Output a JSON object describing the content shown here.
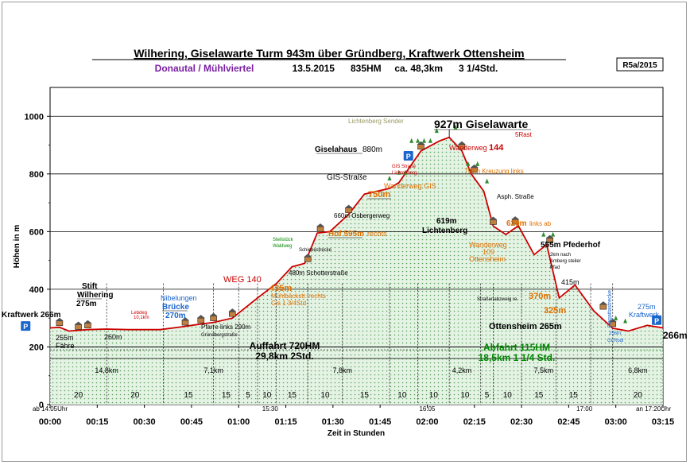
{
  "header": {
    "title": "Wilhering, Giselawarte Turm 943m über Gründberg, Kraftwerk Ottensheim",
    "subtitle_region": "Donautal / Mühlviertel",
    "subtitle_info": "13.5.2015      835HM     ca. 48,3km      3 1/4Std.",
    "badge": "R5a/2015"
  },
  "colors": {
    "profile_line": "#cc0000",
    "fill": "#dff0df",
    "fill_dots": "#5a9e5a",
    "grid": "#000000",
    "ascent_text": "#000000",
    "descent_text": "#008800",
    "orange_text": "#e07000",
    "blue_text": "#1a66cc",
    "red_text": "#cc0000",
    "purple_text": "#7a1fa2",
    "gray_text": "#666666"
  },
  "chart_data": {
    "type": "area",
    "xlabel": "Zeit in Stunden",
    "ylabel": "Höhen in m",
    "ylim": [
      0,
      1100
    ],
    "xlim_minutes": [
      0,
      195
    ],
    "y_ticks": [
      "0",
      "200",
      "400",
      "600",
      "800",
      "1000"
    ],
    "x_ticks": [
      "00:00",
      "00:15",
      "00:30",
      "00:45",
      "01:00",
      "01:15",
      "01:30",
      "01:45",
      "02:00",
      "02:15",
      "02:30",
      "02:45",
      "03:00",
      "03:15"
    ],
    "grid": true,
    "profile": [
      {
        "t": 0,
        "h": 266
      },
      {
        "t": 3,
        "h": 268
      },
      {
        "t": 6,
        "h": 255
      },
      {
        "t": 12,
        "h": 260
      },
      {
        "t": 18,
        "h": 262
      },
      {
        "t": 25,
        "h": 260
      },
      {
        "t": 35,
        "h": 260
      },
      {
        "t": 42,
        "h": 270
      },
      {
        "t": 47,
        "h": 278
      },
      {
        "t": 52,
        "h": 285
      },
      {
        "t": 58,
        "h": 300
      },
      {
        "t": 66,
        "h": 370
      },
      {
        "t": 72,
        "h": 420
      },
      {
        "t": 77,
        "h": 478
      },
      {
        "t": 81,
        "h": 490
      },
      {
        "t": 85,
        "h": 595
      },
      {
        "t": 89,
        "h": 600
      },
      {
        "t": 95,
        "h": 660
      },
      {
        "t": 100,
        "h": 730
      },
      {
        "t": 108,
        "h": 750
      },
      {
        "t": 111,
        "h": 770
      },
      {
        "t": 118,
        "h": 880
      },
      {
        "t": 124,
        "h": 915
      },
      {
        "t": 127,
        "h": 927
      },
      {
        "t": 131,
        "h": 880
      },
      {
        "t": 134,
        "h": 800
      },
      {
        "t": 138,
        "h": 740
      },
      {
        "t": 141,
        "h": 619
      },
      {
        "t": 145,
        "h": 590
      },
      {
        "t": 149,
        "h": 620
      },
      {
        "t": 154,
        "h": 520
      },
      {
        "t": 158,
        "h": 555
      },
      {
        "t": 162,
        "h": 370
      },
      {
        "t": 167,
        "h": 415
      },
      {
        "t": 173,
        "h": 325
      },
      {
        "t": 179,
        "h": 265
      },
      {
        "t": 184,
        "h": 255
      },
      {
        "t": 190,
        "h": 275
      },
      {
        "t": 195,
        "h": 266
      }
    ],
    "vlines_minutes": [
      0,
      18,
      36,
      52,
      60,
      66,
      72,
      82,
      93,
      108,
      117,
      127,
      137,
      141,
      150,
      161,
      172,
      179,
      195
    ],
    "section_speeds": [
      {
        "t": 9,
        "label": "20"
      },
      {
        "t": 27,
        "label": "20"
      },
      {
        "t": 44,
        "label": "15"
      },
      {
        "t": 56,
        "label": "15"
      },
      {
        "t": 63,
        "label": "5"
      },
      {
        "t": 69,
        "label": "10"
      },
      {
        "t": 77,
        "label": "15"
      },
      {
        "t": 87.5,
        "label": "10"
      },
      {
        "t": 100,
        "label": "15"
      },
      {
        "t": 112,
        "label": "10"
      },
      {
        "t": 122,
        "label": "10"
      },
      {
        "t": 132,
        "label": "10"
      },
      {
        "t": 139,
        "label": "5"
      },
      {
        "t": 145.5,
        "label": "10"
      },
      {
        "t": 155.5,
        "label": "15"
      },
      {
        "t": 166.5,
        "label": "15"
      },
      {
        "t": 187,
        "label": "20"
      }
    ],
    "distances": [
      {
        "t": 18,
        "label": "14,8km"
      },
      {
        "t": 52,
        "label": "7,1km"
      },
      {
        "t": 93,
        "label": "7,8km"
      },
      {
        "t": 131,
        "label": "4,2km"
      },
      {
        "t": 157,
        "label": "7,5km"
      },
      {
        "t": 187,
        "label": "6,8km"
      }
    ],
    "clock_labels": [
      {
        "t": 0,
        "label": "ab 14:05Uhr"
      },
      {
        "t": 70,
        "label": "15:30"
      },
      {
        "t": 120,
        "label": "16:05"
      },
      {
        "t": 170,
        "label": "17:00"
      },
      {
        "t": 192,
        "label": "an 17:20Uhr"
      }
    ],
    "summary": {
      "ascent": "Auffahrt  720HM",
      "ascent_detail": "29,8km  2Std.",
      "descent": "Abfahrt  115HM",
      "descent_detail": "18,5km  1 1/4 Std."
    },
    "end_label": "266m",
    "annotations": [
      {
        "t": 0,
        "h": 266,
        "label": "Kraftwerk 266m",
        "color": "#000000",
        "size": 10,
        "bold": true
      },
      {
        "t": 6,
        "h": 255,
        "label": "255m",
        "color": "#000000",
        "size": 9,
        "bold": false
      },
      {
        "t": 6,
        "h": 255,
        "label": "Fähre",
        "color": "#000000",
        "size": 9,
        "bold": false
      },
      {
        "t": 6,
        "h": 290,
        "label": "Stift",
        "color": "#000000",
        "size": 10,
        "bold": true
      },
      {
        "t": 6,
        "h": 290,
        "label": "Wilhering",
        "color": "#000000",
        "size": 10,
        "bold": true
      },
      {
        "t": 6,
        "h": 290,
        "label": "275m",
        "color": "#000000",
        "size": 10,
        "bold": true
      },
      {
        "t": 18,
        "h": 260,
        "label": "260m",
        "color": "#000000",
        "size": 9,
        "bold": false
      },
      {
        "t": 25,
        "h": 300,
        "label": "Lebdeg",
        "color": "#cc0000",
        "size": 6,
        "bold": false
      },
      {
        "t": 25,
        "h": 300,
        "label": "10,1km",
        "color": "#cc0000",
        "size": 6,
        "bold": false
      },
      {
        "t": 41,
        "h": 300,
        "label": "Nibelungen",
        "color": "#1a66cc",
        "size": 9,
        "bold": false
      },
      {
        "t": 41,
        "h": 300,
        "label": "Brücke",
        "color": "#1a66cc",
        "size": 10,
        "bold": true
      },
      {
        "t": 41,
        "h": 300,
        "label": "270m",
        "color": "#1a66cc",
        "size": 10,
        "bold": true
      },
      {
        "t": 49,
        "h": 270,
        "label": "Pfarre links 290m",
        "color": "#000000",
        "size": 8,
        "bold": false
      },
      {
        "t": 49,
        "h": 270,
        "label": "Gründbergstraße",
        "color": "#000000",
        "size": 6,
        "bold": false
      },
      {
        "t": 62,
        "h": 430,
        "label": "WEG 140",
        "color": "#cc0000",
        "size": 11,
        "bold": false
      },
      {
        "t": 66,
        "h": 370,
        "label": "435m",
        "color": "#e07000",
        "size": 11,
        "bold": true
      },
      {
        "t": 66,
        "h": 370,
        "label": "Mühlbäckstr. rechts",
        "color": "#e07000",
        "size": 8,
        "bold": false
      },
      {
        "t": 66,
        "h": 370,
        "label": "Gis 1 3/4Std",
        "color": "#e07000",
        "size": 8,
        "bold": false
      },
      {
        "t": 74,
        "h": 480,
        "label": "480m Schotterstraße",
        "color": "#000000",
        "size": 8,
        "bold": false
      },
      {
        "t": 73,
        "h": 530,
        "label": "Steilstück",
        "color": "#008800",
        "size": 6,
        "bold": false
      },
      {
        "t": 73,
        "h": 530,
        "label": "Waldweg",
        "color": "#008800",
        "size": 6,
        "bold": false
      },
      {
        "t": 78,
        "h": 540,
        "label": "Schiebestrecke",
        "color": "#000000",
        "size": 6,
        "bold": false
      },
      {
        "t": 86,
        "h": 600,
        "label": "Hof 595m",
        "color": "#e07000",
        "size": 10,
        "bold": true
      },
      {
        "t": 86,
        "h": 600,
        "label": "rechts",
        "color": "#e07000",
        "size": 9,
        "bold": false
      },
      {
        "t": 94,
        "h": 660,
        "label": "660m Osbergerweg",
        "color": "#000000",
        "size": 8,
        "bold": false
      },
      {
        "t": 101,
        "h": 730,
        "label": "750m",
        "color": "#e07000",
        "size": 11,
        "bold": true
      },
      {
        "t": 108,
        "h": 750,
        "label": "Wanderweg GIS",
        "color": "#e07000",
        "size": 9,
        "bold": false
      },
      {
        "t": 100,
        "h": 780,
        "label": "GIS-Straße",
        "color": "#000000",
        "size": 10,
        "bold": false
      },
      {
        "t": 115,
        "h": 820,
        "label": "GIS Straße",
        "color": "#cc0000",
        "size": 6,
        "bold": false
      },
      {
        "t": 115,
        "h": 820,
        "label": "Lichtenberg",
        "color": "#cc0000",
        "size": 6,
        "bold": false
      },
      {
        "t": 104,
        "h": 880,
        "label": "Giselahaus",
        "color": "#000000",
        "size": 10,
        "bold": true
      },
      {
        "t": 104,
        "h": 880,
        "label": "880m",
        "color": "#000000",
        "size": 10,
        "bold": false
      },
      {
        "t": 112,
        "h": 950,
        "label": "Lichtenberg Sender",
        "color": "#999966",
        "size": 8,
        "bold": false
      },
      {
        "t": 128,
        "h": 960,
        "label": "927m Giselawarte",
        "color": "#000000",
        "size": 14,
        "bold": true
      },
      {
        "t": 147,
        "h": 940,
        "label": "5Rast",
        "color": "#cc0000",
        "size": 8,
        "bold": false
      },
      {
        "t": 132,
        "h": 880,
        "label": "Wanderweg",
        "color": "#cc0000",
        "size": 9,
        "bold": false
      },
      {
        "t": 132,
        "h": 880,
        "label": "144",
        "color": "#cc0000",
        "size": 11,
        "bold": true
      },
      {
        "t": 137,
        "h": 800,
        "label": "795m Kreuzung links",
        "color": "#e07000",
        "size": 8,
        "bold": false
      },
      {
        "t": 142,
        "h": 720,
        "label": "Asph. Straße",
        "color": "#000000",
        "size": 8,
        "bold": false
      },
      {
        "t": 135,
        "h": 640,
        "label": "619m",
        "color": "#000000",
        "size": 10,
        "bold": true
      },
      {
        "t": 135,
        "h": 640,
        "label": "Lichtenberg",
        "color": "#000000",
        "size": 10,
        "bold": true
      },
      {
        "t": 148,
        "h": 620,
        "label": "620m",
        "color": "#e07000",
        "size": 10,
        "bold": true
      },
      {
        "t": 148,
        "h": 620,
        "label": "links ab",
        "color": "#e07000",
        "size": 8,
        "bold": false
      },
      {
        "t": 143,
        "h": 560,
        "label": "Wanderweg",
        "color": "#e07000",
        "size": 9,
        "bold": false
      },
      {
        "t": 143,
        "h": 560,
        "label": "109",
        "color": "#e07000",
        "size": 9,
        "bold": false
      },
      {
        "t": 143,
        "h": 560,
        "label": "Ottensheim",
        "color": "#e07000",
        "size": 9,
        "bold": false
      },
      {
        "t": 159,
        "h": 555,
        "label": "555m Pfederhof",
        "color": "#000000",
        "size": 10,
        "bold": true
      },
      {
        "t": 161,
        "h": 520,
        "label": "2km nach",
        "color": "#000000",
        "size": 6,
        "bold": false
      },
      {
        "t": 161,
        "h": 520,
        "label": "Amberg steiler",
        "color": "#000000",
        "size": 6,
        "bold": false
      },
      {
        "t": 161,
        "h": 520,
        "label": "Pfad",
        "color": "#000000",
        "size": 6,
        "bold": false
      },
      {
        "t": 166,
        "h": 415,
        "label": "415m",
        "color": "#000000",
        "size": 9,
        "bold": false
      },
      {
        "t": 147,
        "h": 370,
        "label": "Straßenabzweig re.",
        "color": "#000000",
        "size": 6,
        "bold": false
      },
      {
        "t": 160,
        "h": 370,
        "label": "370m",
        "color": "#e07000",
        "size": 11,
        "bold": true
      },
      {
        "t": 172,
        "h": 325,
        "label": "325m",
        "color": "#e07000",
        "size": 11,
        "bold": true
      },
      {
        "t": 174,
        "h": 265,
        "label": "Ottensheim 265m",
        "color": "#000000",
        "size": 11,
        "bold": true
      },
      {
        "t": 181,
        "h": 255,
        "label": "256m",
        "color": "#1a66cc",
        "size": 6,
        "bold": false
      },
      {
        "t": 181,
        "h": 255,
        "label": "Gr.Rodl",
        "color": "#1a66cc",
        "size": 6,
        "bold": false
      },
      {
        "t": 182,
        "h": 265,
        "label": "Regattastrecke",
        "color": "#1a66cc",
        "size": 7,
        "bold": false
      },
      {
        "t": 191,
        "h": 330,
        "label": "275m",
        "color": "#1a66cc",
        "size": 9,
        "bold": false
      },
      {
        "t": 191,
        "h": 330,
        "label": "Kraftwerk",
        "color": "#1a66cc",
        "size": 9,
        "bold": false
      }
    ]
  }
}
